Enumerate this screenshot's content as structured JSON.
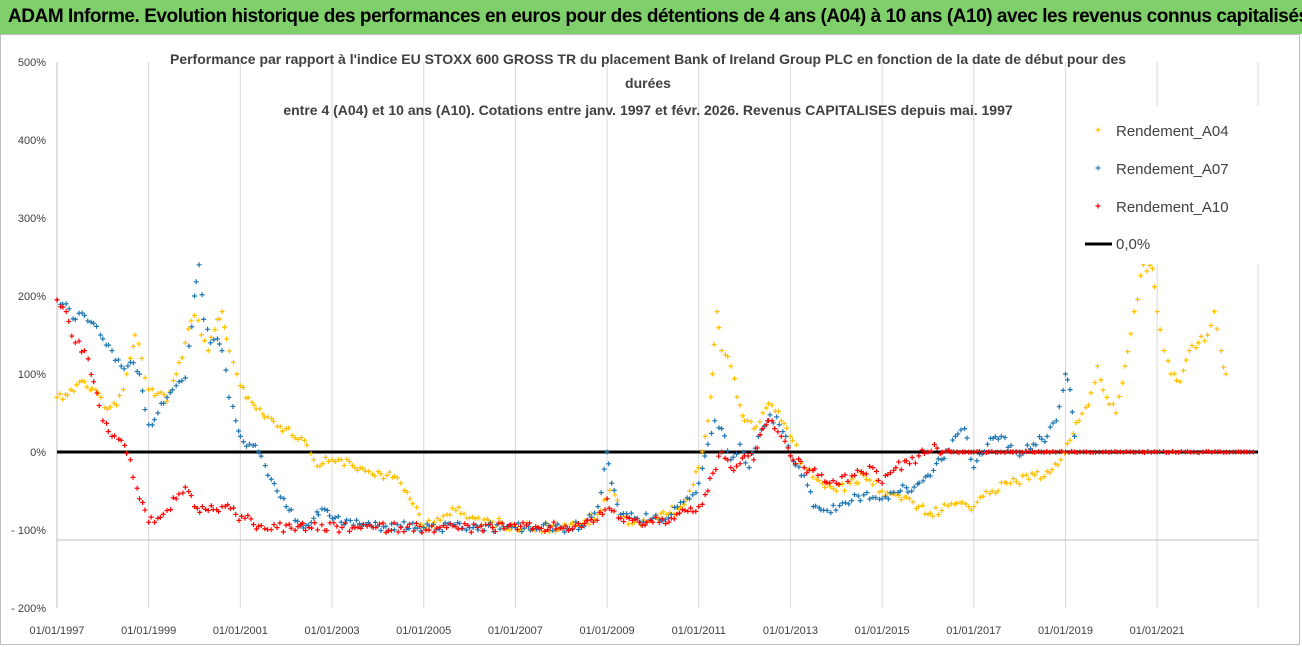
{
  "banner": {
    "text": "ADAM Informe. Evolution historique des performances en euros pour des détentions de 4 ans (A04) à 10 ans (A10) avec les revenus connus capitalisés",
    "bg": "#7fcf6a"
  },
  "chart_data": {
    "type": "scatter",
    "title_lines": [
      "Performance par rapport à l'indice EU STOXX 600 GROSS TR  du placement Bank of Ireland Group PLC en fonction de la date de début pour des",
      "durées",
      "entre 4 (A04) et 10 ans (A10). Cotations entre janv. 1997 et févr. 2026. Revenus CAPITALISES depuis mai. 1997"
    ],
    "x_range": [
      1997.0,
      2023.2
    ],
    "x_ticks": [
      {
        "value": 1997,
        "label": "01/01/1997"
      },
      {
        "value": 1999,
        "label": "01/01/1999"
      },
      {
        "value": 2001,
        "label": "01/01/2001"
      },
      {
        "value": 2003,
        "label": "01/01/2003"
      },
      {
        "value": 2005,
        "label": "01/01/2005"
      },
      {
        "value": 2007,
        "label": "01/01/2007"
      },
      {
        "value": 2009,
        "label": "01/01/2009"
      },
      {
        "value": 2011,
        "label": "01/01/2011"
      },
      {
        "value": 2013,
        "label": "01/01/2013"
      },
      {
        "value": 2015,
        "label": "01/01/2015"
      },
      {
        "value": 2017,
        "label": "01/01/2017"
      },
      {
        "value": 2019,
        "label": "01/01/2019"
      },
      {
        "value": 2021,
        "label": "01/01/2021"
      }
    ],
    "ylim": [
      -200,
      500
    ],
    "y_ticks": [
      {
        "value": 500,
        "label": "500%"
      },
      {
        "value": 400,
        "label": "400%"
      },
      {
        "value": 300,
        "label": "300%"
      },
      {
        "value": 200,
        "label": "200%"
      },
      {
        "value": 100,
        "label": "100%"
      },
      {
        "value": 0,
        "label": "0%"
      },
      {
        "value": -100,
        "label": "- 100%"
      },
      {
        "value": -200,
        "label": "- 200%"
      }
    ],
    "grid": "vertical",
    "legend_position": "right",
    "series": [
      {
        "name": "Rendement_A04",
        "color": "#ffc000",
        "points": [
          [
            1997.0,
            70
          ],
          [
            1997.3,
            80
          ],
          [
            1997.6,
            90
          ],
          [
            1997.9,
            75
          ],
          [
            1998.1,
            55
          ],
          [
            1998.3,
            60
          ],
          [
            1998.45,
            80
          ],
          [
            1998.6,
            120
          ],
          [
            1998.7,
            150
          ],
          [
            1998.85,
            120
          ],
          [
            1999.0,
            80
          ],
          [
            1999.2,
            75
          ],
          [
            1999.4,
            65
          ],
          [
            1999.6,
            100
          ],
          [
            1999.8,
            140
          ],
          [
            2000.0,
            175
          ],
          [
            2000.15,
            150
          ],
          [
            2000.3,
            130
          ],
          [
            2000.5,
            170
          ],
          [
            2000.6,
            180
          ],
          [
            2000.7,
            145
          ],
          [
            2000.85,
            115
          ],
          [
            2001.0,
            85
          ],
          [
            2001.3,
            60
          ],
          [
            2001.6,
            45
          ],
          [
            2002.0,
            30
          ],
          [
            2002.4,
            15
          ],
          [
            2002.6,
            -10
          ],
          [
            2002.8,
            -15
          ],
          [
            2003.0,
            -10
          ],
          [
            2003.2,
            -10
          ],
          [
            2003.5,
            -20
          ],
          [
            2003.8,
            -25
          ],
          [
            2004.2,
            -30
          ],
          [
            2004.5,
            -40
          ],
          [
            2004.7,
            -60
          ],
          [
            2004.9,
            -80
          ],
          [
            2005.0,
            -95
          ],
          [
            2005.3,
            -85
          ],
          [
            2005.7,
            -75
          ],
          [
            2006.0,
            -85
          ],
          [
            2006.5,
            -90
          ],
          [
            2007.0,
            -95
          ],
          [
            2007.5,
            -97
          ],
          [
            2008.0,
            -97
          ],
          [
            2008.4,
            -95
          ],
          [
            2008.8,
            -80
          ],
          [
            2009.0,
            -60
          ],
          [
            2009.1,
            -40
          ],
          [
            2009.3,
            -80
          ],
          [
            2009.6,
            -90
          ],
          [
            2010.0,
            -85
          ],
          [
            2010.3,
            -80
          ],
          [
            2010.6,
            -70
          ],
          [
            2010.8,
            -50
          ],
          [
            2011.0,
            -20
          ],
          [
            2011.2,
            40
          ],
          [
            2011.3,
            100
          ],
          [
            2011.4,
            180
          ],
          [
            2011.5,
            130
          ],
          [
            2011.7,
            110
          ],
          [
            2011.9,
            60
          ],
          [
            2012.0,
            40
          ],
          [
            2012.2,
            30
          ],
          [
            2012.4,
            50
          ],
          [
            2012.6,
            60
          ],
          [
            2012.8,
            40
          ],
          [
            2013.0,
            20
          ],
          [
            2013.3,
            -20
          ],
          [
            2013.7,
            -40
          ],
          [
            2014.0,
            -50
          ],
          [
            2014.3,
            -40
          ],
          [
            2014.6,
            -30
          ],
          [
            2015.0,
            -50
          ],
          [
            2015.3,
            -55
          ],
          [
            2015.6,
            -60
          ],
          [
            2015.8,
            -70
          ],
          [
            2016.0,
            -80
          ],
          [
            2016.3,
            -75
          ],
          [
            2016.7,
            -65
          ],
          [
            2017.0,
            -70
          ],
          [
            2017.4,
            -50
          ],
          [
            2017.8,
            -40
          ],
          [
            2018.2,
            -35
          ],
          [
            2018.6,
            -25
          ],
          [
            2018.9,
            -10
          ],
          [
            2019.1,
            15
          ],
          [
            2019.3,
            40
          ],
          [
            2019.5,
            60
          ],
          [
            2019.7,
            110
          ],
          [
            2019.9,
            70
          ],
          [
            2020.1,
            50
          ],
          [
            2020.3,
            110
          ],
          [
            2020.5,
            180
          ],
          [
            2020.7,
            240
          ],
          [
            2020.9,
            235
          ],
          [
            2021.0,
            180
          ],
          [
            2021.15,
            130
          ],
          [
            2021.3,
            100
          ],
          [
            2021.5,
            90
          ],
          [
            2021.7,
            130
          ],
          [
            2021.9,
            140
          ],
          [
            2022.1,
            150
          ],
          [
            2022.25,
            180
          ],
          [
            2022.4,
            130
          ],
          [
            2022.5,
            100
          ]
        ]
      },
      {
        "name": "Rendement_A07",
        "color": "#1f77b4",
        "points": [
          [
            1997.0,
            195
          ],
          [
            1997.2,
            190
          ],
          [
            1997.4,
            170
          ],
          [
            1997.6,
            175
          ],
          [
            1997.8,
            165
          ],
          [
            1998.0,
            145
          ],
          [
            1998.2,
            130
          ],
          [
            1998.4,
            110
          ],
          [
            1998.6,
            115
          ],
          [
            1998.8,
            100
          ],
          [
            1999.0,
            35
          ],
          [
            1999.2,
            50
          ],
          [
            1999.4,
            70
          ],
          [
            1999.6,
            85
          ],
          [
            1999.8,
            95
          ],
          [
            2000.0,
            200
          ],
          [
            2000.1,
            240
          ],
          [
            2000.2,
            170
          ],
          [
            2000.35,
            140
          ],
          [
            2000.5,
            145
          ],
          [
            2000.6,
            130
          ],
          [
            2000.75,
            70
          ],
          [
            2000.9,
            40
          ],
          [
            2001.0,
            20
          ],
          [
            2001.2,
            10
          ],
          [
            2001.4,
            0
          ],
          [
            2001.6,
            -30
          ],
          [
            2001.8,
            -50
          ],
          [
            2002.0,
            -70
          ],
          [
            2002.3,
            -95
          ],
          [
            2002.6,
            -85
          ],
          [
            2002.9,
            -75
          ],
          [
            2003.2,
            -90
          ],
          [
            2003.6,
            -92
          ],
          [
            2004.0,
            -95
          ],
          [
            2004.5,
            -95
          ],
          [
            2005.0,
            -97
          ],
          [
            2006.0,
            -97
          ],
          [
            2007.0,
            -97
          ],
          [
            2008.0,
            -97
          ],
          [
            2008.5,
            -95
          ],
          [
            2008.8,
            -70
          ],
          [
            2009.0,
            0
          ],
          [
            2009.1,
            -40
          ],
          [
            2009.3,
            -80
          ],
          [
            2009.6,
            -85
          ],
          [
            2010.0,
            -85
          ],
          [
            2010.4,
            -80
          ],
          [
            2010.8,
            -60
          ],
          [
            2011.0,
            -40
          ],
          [
            2011.2,
            10
          ],
          [
            2011.35,
            40
          ],
          [
            2011.5,
            30
          ],
          [
            2011.7,
            -10
          ],
          [
            2011.9,
            10
          ],
          [
            2012.1,
            -20
          ],
          [
            2012.3,
            20
          ],
          [
            2012.5,
            40
          ],
          [
            2012.7,
            45
          ],
          [
            2012.9,
            20
          ],
          [
            2013.0,
            -5
          ],
          [
            2013.3,
            -30
          ],
          [
            2013.5,
            -70
          ],
          [
            2013.8,
            -75
          ],
          [
            2014.2,
            -65
          ],
          [
            2014.6,
            -55
          ],
          [
            2015.0,
            -60
          ],
          [
            2015.4,
            -50
          ],
          [
            2015.7,
            -45
          ],
          [
            2016.0,
            -30
          ],
          [
            2016.3,
            -10
          ],
          [
            2016.6,
            20
          ],
          [
            2016.8,
            30
          ],
          [
            2017.0,
            -20
          ],
          [
            2017.3,
            10
          ],
          [
            2017.6,
            20
          ],
          [
            2018.0,
            -5
          ],
          [
            2018.3,
            10
          ],
          [
            2018.6,
            20
          ],
          [
            2018.8,
            40
          ],
          [
            2019.0,
            100
          ],
          [
            2019.1,
            80
          ],
          [
            2019.2,
            20
          ]
        ]
      },
      {
        "name": "Rendement_A10",
        "color": "#ff0000",
        "points": [
          [
            1997.0,
            195
          ],
          [
            1997.2,
            180
          ],
          [
            1997.4,
            140
          ],
          [
            1997.6,
            130
          ],
          [
            1997.8,
            90
          ],
          [
            1998.0,
            40
          ],
          [
            1998.2,
            20
          ],
          [
            1998.4,
            15
          ],
          [
            1998.6,
            -10
          ],
          [
            1998.8,
            -60
          ],
          [
            1999.0,
            -90
          ],
          [
            1999.2,
            -85
          ],
          [
            1999.4,
            -75
          ],
          [
            1999.6,
            -60
          ],
          [
            1999.8,
            -45
          ],
          [
            2000.0,
            -70
          ],
          [
            2000.3,
            -75
          ],
          [
            2000.6,
            -70
          ],
          [
            2000.9,
            -80
          ],
          [
            2001.1,
            -85
          ],
          [
            2001.4,
            -95
          ],
          [
            2001.8,
            -97
          ],
          [
            2002.5,
            -97
          ],
          [
            2003.5,
            -97
          ],
          [
            2004.5,
            -97
          ],
          [
            2005.5,
            -97
          ],
          [
            2006.5,
            -97
          ],
          [
            2007.5,
            -97
          ],
          [
            2008.3,
            -95
          ],
          [
            2008.7,
            -90
          ],
          [
            2008.9,
            -80
          ],
          [
            2009.0,
            -60
          ],
          [
            2009.1,
            -75
          ],
          [
            2009.3,
            -85
          ],
          [
            2009.7,
            -90
          ],
          [
            2010.0,
            -90
          ],
          [
            2010.4,
            -85
          ],
          [
            2010.7,
            -75
          ],
          [
            2011.0,
            -70
          ],
          [
            2011.2,
            -50
          ],
          [
            2011.5,
            0
          ],
          [
            2011.7,
            -20
          ],
          [
            2011.9,
            -15
          ],
          [
            2012.0,
            -5
          ],
          [
            2012.2,
            -10
          ],
          [
            2012.4,
            30
          ],
          [
            2012.6,
            40
          ],
          [
            2012.8,
            20
          ],
          [
            2013.0,
            -5
          ],
          [
            2013.3,
            -20
          ],
          [
            2013.6,
            -30
          ],
          [
            2014.0,
            -40
          ],
          [
            2014.4,
            -30
          ],
          [
            2014.8,
            -20
          ],
          [
            2015.0,
            -40
          ],
          [
            2015.3,
            -20
          ],
          [
            2015.6,
            -15
          ],
          [
            2015.8,
            -5
          ],
          [
            2016.0,
            0
          ],
          [
            2016.2,
            5
          ],
          [
            2016.5,
            0
          ],
          [
            2017.0,
            0
          ],
          [
            2018.0,
            0
          ],
          [
            2019.0,
            0
          ],
          [
            2020.0,
            0
          ],
          [
            2021.0,
            0
          ],
          [
            2022.0,
            0
          ],
          [
            2023.1,
            0
          ]
        ]
      }
    ],
    "reference_line": {
      "name": "0,0%",
      "value": 0,
      "color": "#000000"
    }
  }
}
